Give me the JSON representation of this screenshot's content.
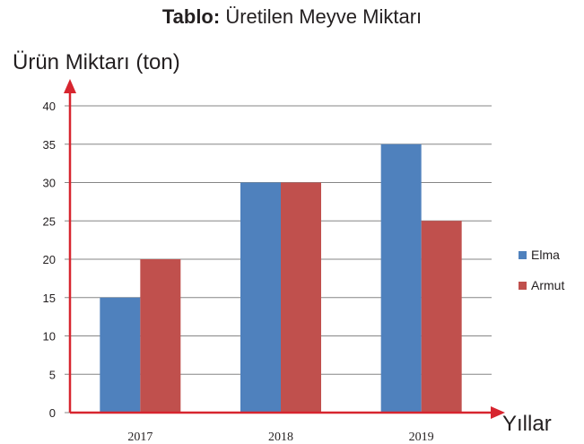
{
  "chart_data": {
    "type": "bar",
    "title_bold": "Tablo:",
    "title_rest": " Üretilen Meyve Miktarı",
    "ylabel": "Ürün Miktarı (ton)",
    "xlabel": "Yıllar",
    "categories": [
      "2017",
      "2018",
      "2019"
    ],
    "series": [
      {
        "name": "Elma",
        "values": [
          15,
          30,
          35
        ],
        "color": "#4f81bd"
      },
      {
        "name": "Armut",
        "values": [
          20,
          30,
          25
        ],
        "color": "#c0504d"
      }
    ],
    "ylim": [
      0,
      40
    ],
    "yticks": [
      0,
      5,
      10,
      15,
      20,
      25,
      30,
      35,
      40
    ],
    "grid": true,
    "legend": "right",
    "axis_color": "#d7252f",
    "grid_color": "#868686"
  }
}
